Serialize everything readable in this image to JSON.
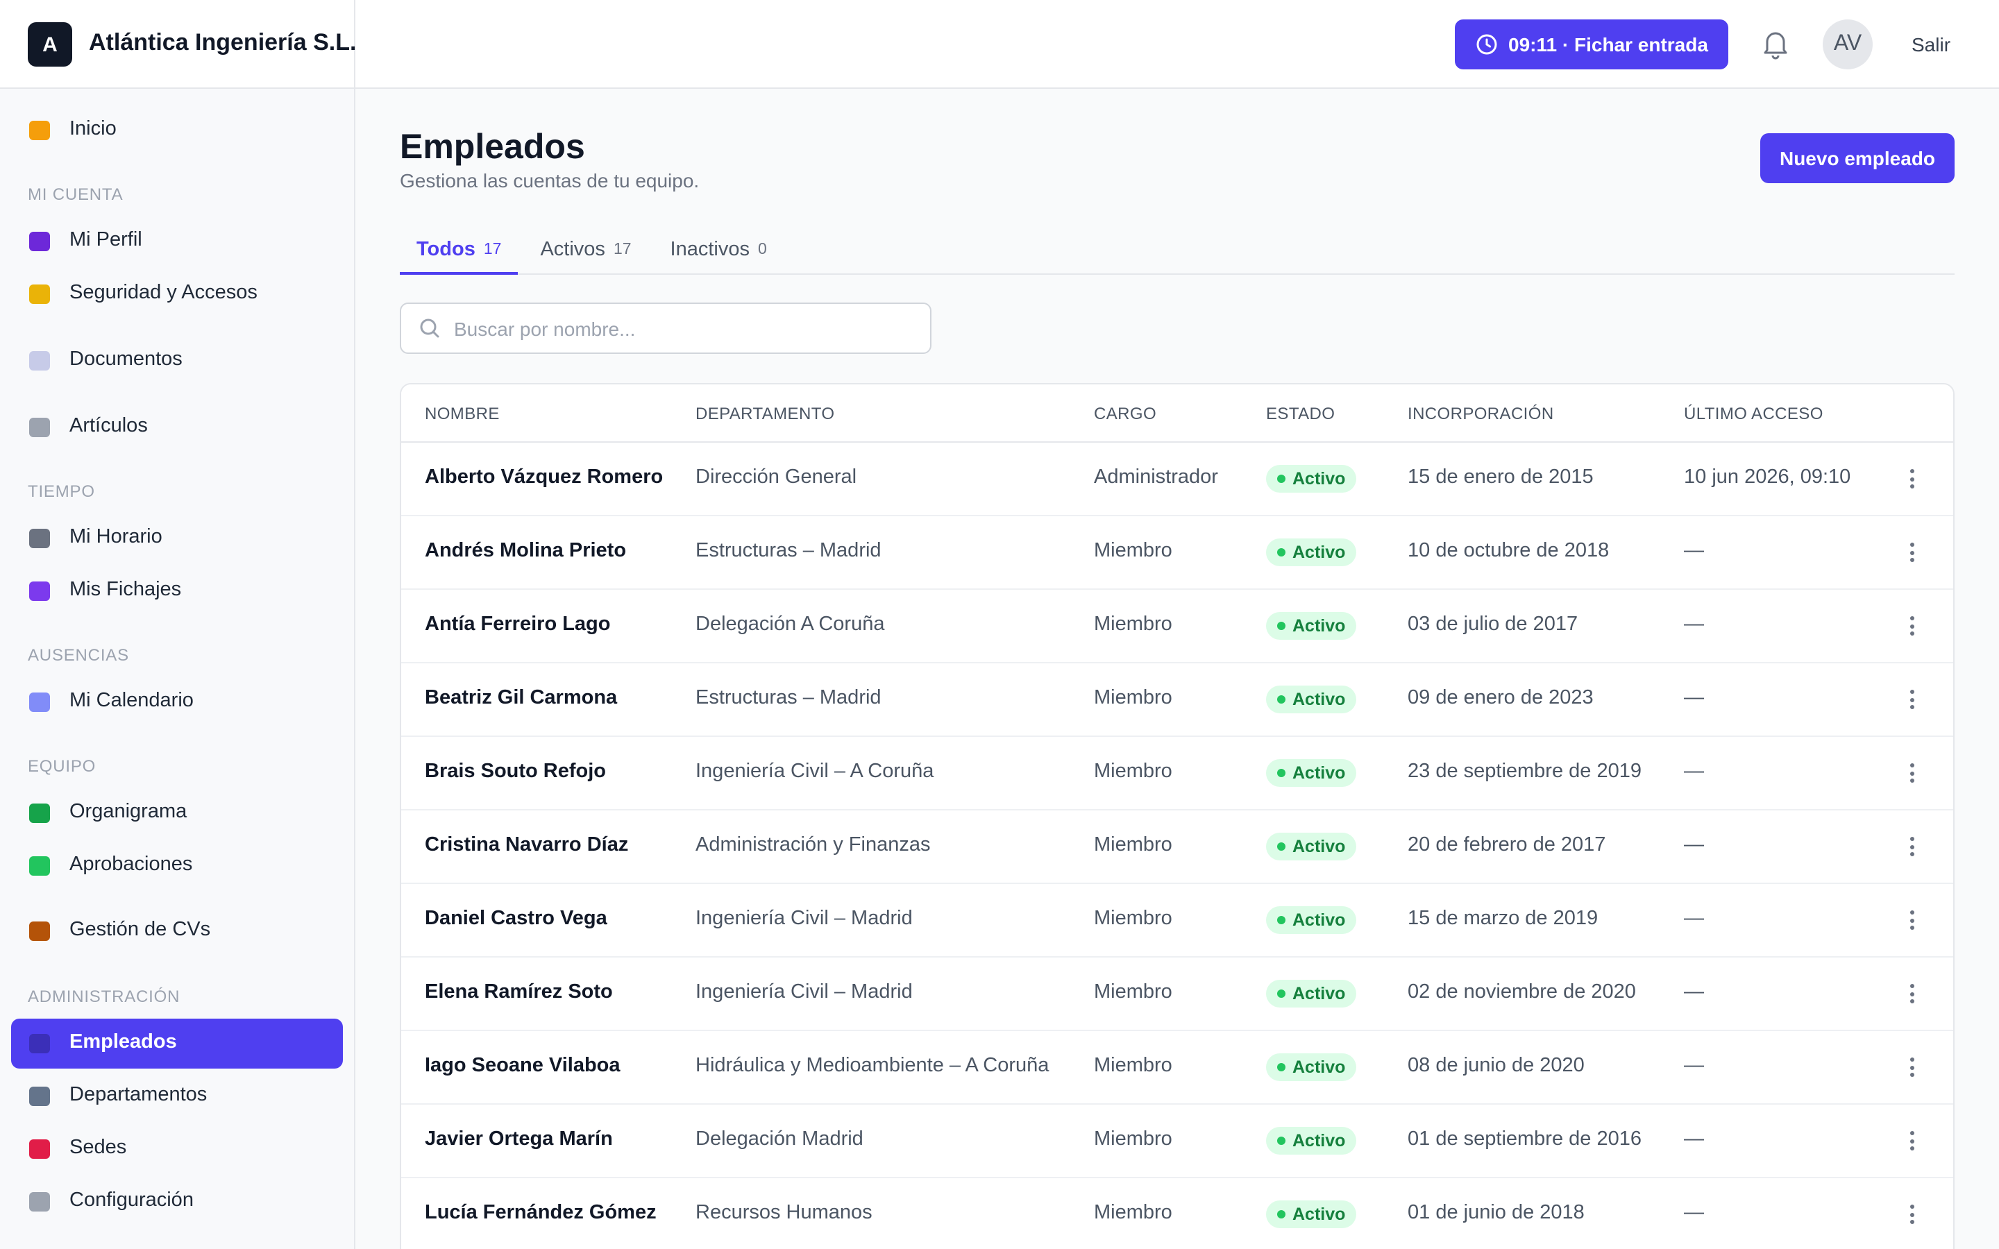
{
  "brand": {
    "initial": "A",
    "name": "Atlántica Ingeniería S.L."
  },
  "topbar": {
    "clock_button": "09:11 · Fichar entrada",
    "avatar": "AV",
    "logout": "Salir"
  },
  "sidebar": [
    {
      "label": "Inicio"
    },
    {
      "heading": "MI CUENTA"
    },
    {
      "label": "Mi Perfil"
    },
    {
      "label": "Seguridad y Accesos"
    },
    {
      "label": "Documentos"
    },
    {
      "label": "Artículos"
    },
    {
      "heading": "TIEMPO"
    },
    {
      "label": "Mi Horario"
    },
    {
      "label": "Mis Fichajes"
    },
    {
      "heading": "AUSENCIAS"
    },
    {
      "label": "Mi Calendario"
    },
    {
      "heading": "EQUIPO"
    },
    {
      "label": "Organigrama"
    },
    {
      "label": "Aprobaciones"
    },
    {
      "label": "Gestión de CVs"
    },
    {
      "heading": "ADMINISTRACIÓN"
    },
    {
      "label": "Empleados",
      "active": true
    },
    {
      "label": "Departamentos"
    },
    {
      "label": "Sedes"
    },
    {
      "label": "Configuración"
    }
  ],
  "page": {
    "title": "Empleados",
    "subtitle": "Gestiona las cuentas de tu equipo.",
    "primary_button": "Nuevo empleado"
  },
  "tabs": [
    {
      "label": "Todos",
      "count": 17,
      "active": true
    },
    {
      "label": "Activos",
      "count": 17
    },
    {
      "label": "Inactivos",
      "count": 0
    }
  ],
  "search": {
    "placeholder": "Buscar por nombre..."
  },
  "table": {
    "columns": [
      "NOMBRE",
      "DEPARTAMENTO",
      "CARGO",
      "ESTADO",
      "INCORPORACIÓN",
      "ÚLTIMO ACCESO"
    ],
    "rows": [
      [
        "Alberto Vázquez Romero",
        "Dirección General",
        "Administrador",
        "Activo",
        "15 de enero de 2015",
        "10 jun 2026, 09:10"
      ],
      [
        "Andrés Molina Prieto",
        "Estructuras – Madrid",
        "Miembro",
        "Activo",
        "10 de octubre de 2018",
        "—"
      ],
      [
        "Antía Ferreiro Lago",
        "Delegación A Coruña",
        "Miembro",
        "Activo",
        "03 de julio de 2017",
        "—"
      ],
      [
        "Beatriz Gil Carmona",
        "Estructuras – Madrid",
        "Miembro",
        "Activo",
        "09 de enero de 2023",
        "—"
      ],
      [
        "Brais Souto Refojo",
        "Ingeniería Civil – A Coruña",
        "Miembro",
        "Activo",
        "23 de septiembre de 2019",
        "—"
      ],
      [
        "Cristina Navarro Díaz",
        "Administración y Finanzas",
        "Miembro",
        "Activo",
        "20 de febrero de 2017",
        "—"
      ],
      [
        "Daniel Castro Vega",
        "Ingeniería Civil – Madrid",
        "Miembro",
        "Activo",
        "15 de marzo de 2019",
        "—"
      ],
      [
        "Elena Ramírez Soto",
        "Ingeniería Civil – Madrid",
        "Miembro",
        "Activo",
        "02 de noviembre de 2020",
        "—"
      ],
      [
        "Iago Seoane Vilaboa",
        "Hidráulica y Medioambiente – A Coruña",
        "Miembro",
        "Activo",
        "08 de junio de 2020",
        "—"
      ],
      [
        "Javier Ortega Marín",
        "Delegación Madrid",
        "Miembro",
        "Activo",
        "01 de septiembre de 2016",
        "—"
      ],
      [
        "Lucía Fernández Gómez",
        "Recursos Humanos",
        "Miembro",
        "Activo",
        "01 de junio de 2018",
        "—"
      ]
    ]
  }
}
